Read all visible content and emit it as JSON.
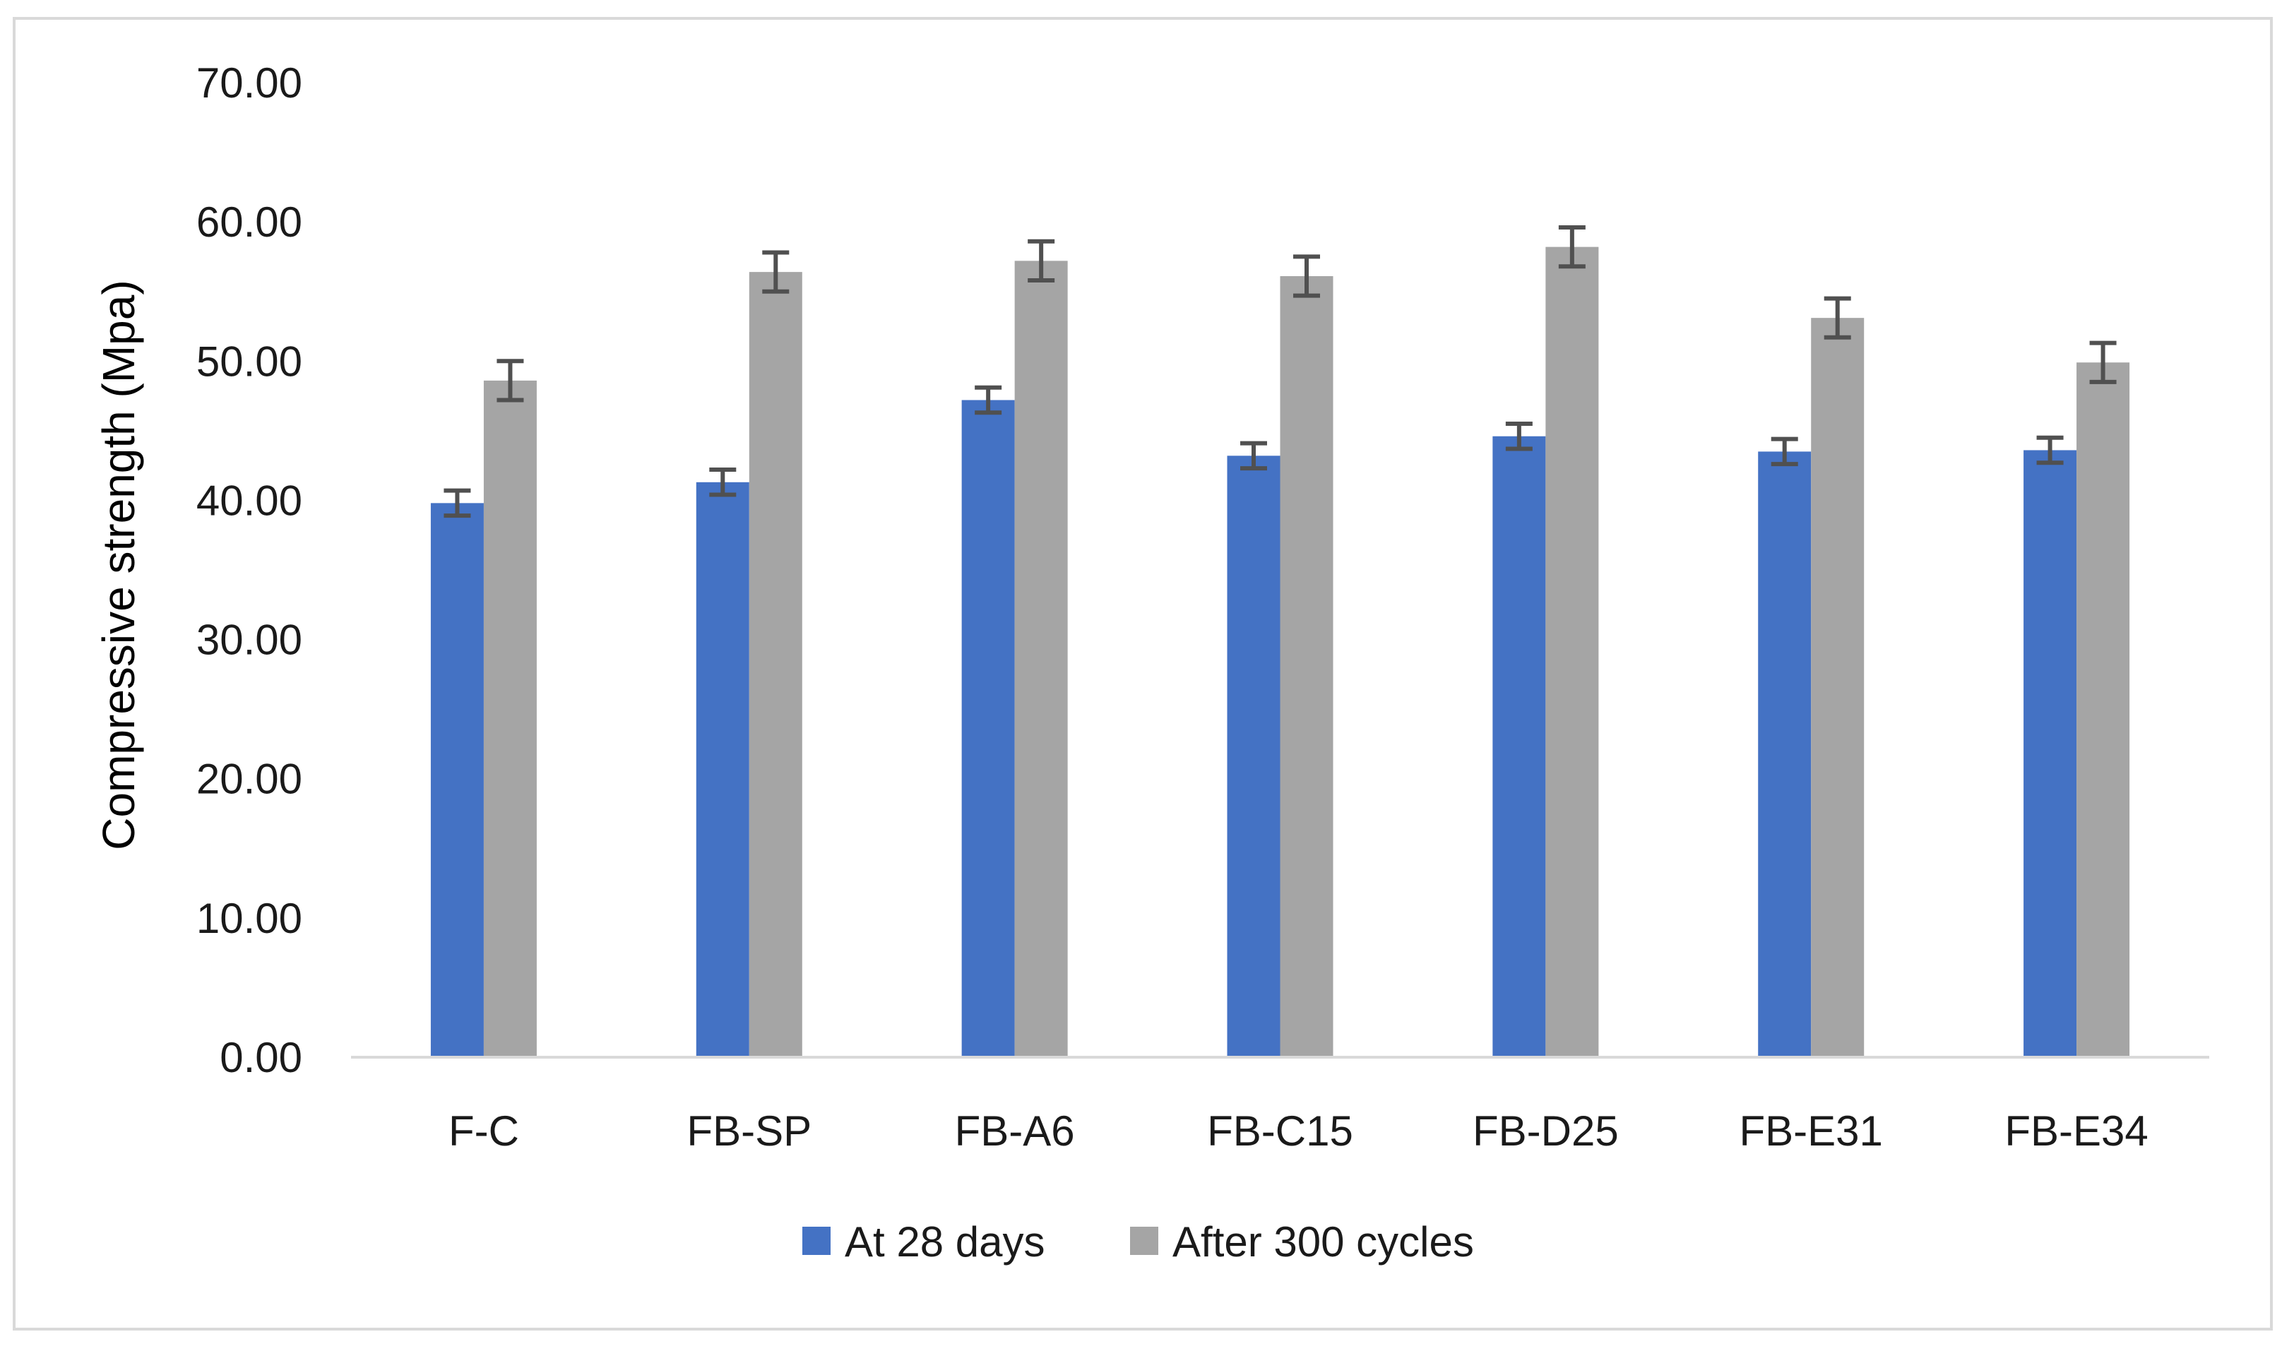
{
  "chart_data": {
    "type": "bar",
    "title": "",
    "xlabel": "",
    "ylabel": "Compressive strength (Mpa)",
    "ylim": [
      0,
      70
    ],
    "yticks": [
      "0.00",
      "10.00",
      "20.00",
      "30.00",
      "40.00",
      "50.00",
      "60.00",
      "70.00"
    ],
    "grid": false,
    "legend_position": "bottom",
    "categories": [
      "F-C",
      "FB-SP",
      "FB-A6",
      "FB-C15",
      "FB-D25",
      "FB-E31",
      "FB-E34"
    ],
    "series": [
      {
        "name": "At 28 days",
        "color": "#4472c4",
        "values": [
          39.8,
          41.3,
          47.2,
          43.2,
          44.6,
          43.5,
          43.6
        ],
        "error": [
          0.9,
          0.9,
          0.9,
          0.9,
          0.9,
          0.9,
          0.9
        ]
      },
      {
        "name": "After 300 cycles",
        "color": "#a5a5a5",
        "values": [
          48.6,
          56.4,
          57.2,
          56.1,
          58.2,
          53.1,
          49.9
        ],
        "error": [
          1.4,
          1.4,
          1.4,
          1.4,
          1.4,
          1.4,
          1.4
        ]
      }
    ],
    "error_bar_color": "#505050",
    "axis_color": "#d9d9d9"
  }
}
